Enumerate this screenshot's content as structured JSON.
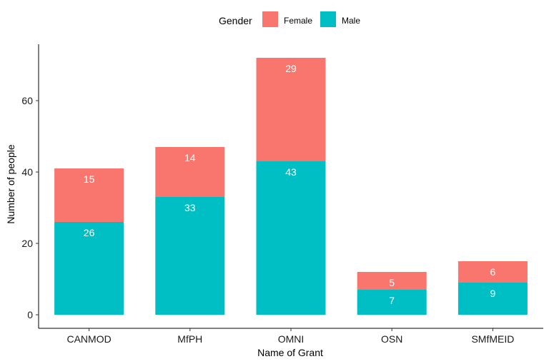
{
  "chart_data": {
    "type": "bar",
    "stacked": true,
    "categories": [
      "CANMOD",
      "MfPH",
      "OMNI",
      "OSN",
      "SMfMEID"
    ],
    "series": [
      {
        "name": "Male",
        "color": "#00BFC4",
        "values": [
          26,
          33,
          43,
          7,
          9
        ]
      },
      {
        "name": "Female",
        "color": "#F8766D",
        "values": [
          15,
          14,
          29,
          5,
          6
        ]
      }
    ],
    "legend": {
      "title": "Gender",
      "position": "top",
      "items": [
        "Female",
        "Male"
      ]
    },
    "xlabel": "Name of Grant",
    "ylabel": "Number of people",
    "ylim": [
      0,
      75
    ],
    "yticks": [
      0,
      20,
      40,
      60
    ],
    "grid": false
  }
}
